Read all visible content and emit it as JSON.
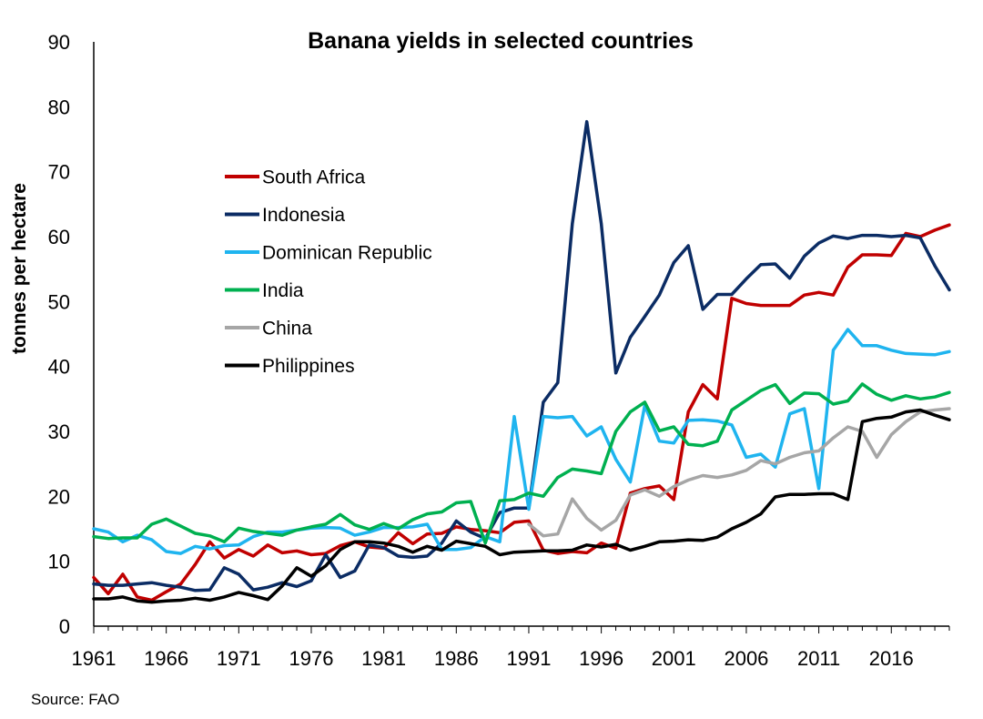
{
  "chart_data": {
    "type": "line",
    "title": "Banana yields in selected countries",
    "ylabel": "tonnes per hectare",
    "xlabel": "",
    "source": "Source: FAO",
    "ylim": [
      0,
      90
    ],
    "yticks": [
      0,
      10,
      20,
      30,
      40,
      50,
      60,
      70,
      80,
      90
    ],
    "xlim": [
      1961,
      2020
    ],
    "xticks": [
      1961,
      1966,
      1971,
      1976,
      1981,
      1986,
      1991,
      1996,
      2001,
      2006,
      2011,
      2016
    ],
    "grid": false,
    "legend_position": "upper-left",
    "series": [
      {
        "name": "South Africa",
        "color": "#C00000",
        "x": [
          1961,
          1962,
          1963,
          1964,
          1965,
          1966,
          1967,
          1968,
          1969,
          1970,
          1971,
          1972,
          1973,
          1974,
          1975,
          1976,
          1977,
          1978,
          1979,
          1980,
          1981,
          1982,
          1983,
          1984,
          1985,
          1986,
          1987,
          1988,
          1989,
          1990,
          1991,
          1992,
          1993,
          1994,
          1995,
          1996,
          1997,
          1998,
          1999,
          2000,
          2001,
          2002,
          2003,
          2004,
          2005,
          2006,
          2007,
          2008,
          2009,
          2010,
          2011,
          2012,
          2013,
          2014,
          2015,
          2016,
          2017,
          2018,
          2019,
          2020
        ],
        "values": [
          7.5,
          5.0,
          8.0,
          4.5,
          4.0,
          5.3,
          6.5,
          9.5,
          13.0,
          10.5,
          11.8,
          10.8,
          12.5,
          11.3,
          11.6,
          11.0,
          11.2,
          12.4,
          13.0,
          12.2,
          12.0,
          14.4,
          12.7,
          14.2,
          14.3,
          15.3,
          14.9,
          14.7,
          14.4,
          16.0,
          16.2,
          11.7,
          11.2,
          11.5,
          11.3,
          12.8,
          12.0,
          20.5,
          21.2,
          21.6,
          19.5,
          33.0,
          37.2,
          35.0,
          50.5,
          49.7,
          49.4,
          49.4,
          49.4,
          51.0,
          51.4,
          51.0,
          55.3,
          57.2,
          57.2,
          57.1,
          60.5,
          60.0,
          61.0,
          61.8
        ]
      },
      {
        "name": "Indonesia",
        "color": "#0B2C64",
        "x": [
          1961,
          1962,
          1963,
          1964,
          1965,
          1966,
          1967,
          1968,
          1969,
          1970,
          1971,
          1972,
          1973,
          1974,
          1975,
          1976,
          1977,
          1978,
          1979,
          1980,
          1981,
          1982,
          1983,
          1984,
          1985,
          1986,
          1987,
          1988,
          1989,
          1990,
          1991,
          1992,
          1993,
          1994,
          1995,
          1996,
          1997,
          1998,
          1999,
          2000,
          2001,
          2002,
          2003,
          2004,
          2005,
          2006,
          2007,
          2008,
          2009,
          2010,
          2011,
          2012,
          2013,
          2014,
          2015,
          2016,
          2017,
          2018,
          2019,
          2020
        ],
        "values": [
          6.5,
          6.3,
          6.3,
          6.5,
          6.7,
          6.3,
          6.0,
          5.5,
          5.6,
          9.0,
          8.0,
          5.6,
          6.0,
          6.7,
          6.1,
          7.0,
          11.0,
          7.5,
          8.5,
          12.5,
          12.1,
          10.8,
          10.6,
          10.8,
          12.8,
          16.2,
          14.5,
          13.5,
          17.5,
          18.2,
          18.2,
          34.5,
          37.5,
          62.0,
          77.7,
          62.0,
          39.0,
          44.5,
          47.7,
          51.0,
          56.0,
          58.6,
          48.8,
          51.1,
          51.1,
          53.5,
          55.7,
          55.8,
          53.6,
          57.0,
          59.0,
          60.1,
          59.7,
          60.2,
          60.2,
          60.0,
          60.2,
          59.8,
          55.5,
          51.8
        ]
      },
      {
        "name": "Dominican Republic",
        "color": "#1FB4EF",
        "x": [
          1961,
          1962,
          1963,
          1964,
          1965,
          1966,
          1967,
          1968,
          1969,
          1970,
          1971,
          1972,
          1973,
          1974,
          1975,
          1976,
          1977,
          1978,
          1979,
          1980,
          1981,
          1982,
          1983,
          1984,
          1985,
          1986,
          1987,
          1988,
          1989,
          1990,
          1991,
          1992,
          1993,
          1994,
          1995,
          1996,
          1997,
          1998,
          1999,
          2000,
          2001,
          2002,
          2003,
          2004,
          2005,
          2006,
          2007,
          2008,
          2009,
          2010,
          2011,
          2012,
          2013,
          2014,
          2015,
          2016,
          2017,
          2018,
          2019,
          2020
        ],
        "values": [
          15.0,
          14.5,
          13.0,
          14.0,
          13.3,
          11.5,
          11.2,
          12.3,
          11.9,
          12.4,
          12.5,
          13.8,
          14.5,
          14.5,
          14.8,
          15.1,
          15.2,
          15.1,
          14.0,
          14.5,
          15.2,
          15.2,
          15.3,
          15.7,
          11.8,
          11.8,
          12.1,
          13.8,
          13.0,
          32.3,
          18.0,
          32.3,
          32.1,
          32.3,
          29.3,
          30.7,
          25.7,
          22.2,
          34.0,
          28.5,
          28.2,
          31.7,
          31.8,
          31.6,
          31.0,
          26.0,
          26.5,
          24.5,
          32.7,
          33.5,
          21.2,
          42.5,
          45.7,
          43.2,
          43.2,
          42.5,
          42.0,
          41.9,
          41.8,
          42.3
        ]
      },
      {
        "name": "India",
        "color": "#00B050",
        "x": [
          1961,
          1962,
          1963,
          1964,
          1965,
          1966,
          1967,
          1968,
          1969,
          1970,
          1971,
          1972,
          1973,
          1974,
          1975,
          1976,
          1977,
          1978,
          1979,
          1980,
          1981,
          1982,
          1983,
          1984,
          1985,
          1986,
          1987,
          1988,
          1989,
          1990,
          1991,
          1992,
          1993,
          1994,
          1995,
          1996,
          1997,
          1998,
          1999,
          2000,
          2001,
          2002,
          2003,
          2004,
          2005,
          2006,
          2007,
          2008,
          2009,
          2010,
          2011,
          2012,
          2013,
          2014,
          2015,
          2016,
          2017,
          2018,
          2019,
          2020
        ],
        "values": [
          13.8,
          13.5,
          13.6,
          13.6,
          15.7,
          16.5,
          15.4,
          14.3,
          13.9,
          13.0,
          15.1,
          14.6,
          14.3,
          14.0,
          14.8,
          15.3,
          15.7,
          17.2,
          15.6,
          14.9,
          15.8,
          15.0,
          16.4,
          17.3,
          17.6,
          19.0,
          19.2,
          12.8,
          19.3,
          19.5,
          20.5,
          20.0,
          22.9,
          24.2,
          23.9,
          23.5,
          30.0,
          33.0,
          34.5,
          30.1,
          30.7,
          28.0,
          27.8,
          28.5,
          33.3,
          34.8,
          36.3,
          37.2,
          34.3,
          35.9,
          35.8,
          34.2,
          34.7,
          37.3,
          35.7,
          34.8,
          35.5,
          35.0,
          35.3,
          36.0
        ]
      },
      {
        "name": "China",
        "color": "#A6A6A6",
        "x": [
          1991,
          1992,
          1993,
          1994,
          1995,
          1996,
          1997,
          1998,
          1999,
          2000,
          2001,
          2002,
          2003,
          2004,
          2005,
          2006,
          2007,
          2008,
          2009,
          2010,
          2011,
          2012,
          2013,
          2014,
          2015,
          2016,
          2017,
          2018,
          2019,
          2020
        ],
        "values": [
          15.7,
          13.9,
          14.2,
          19.6,
          16.6,
          14.8,
          16.3,
          20.2,
          21.0,
          20.0,
          21.5,
          22.5,
          23.2,
          22.9,
          23.3,
          24.0,
          25.5,
          25.0,
          26.0,
          26.7,
          27.0,
          29.0,
          30.7,
          30.0,
          26.0,
          29.5,
          31.5,
          33.0,
          33.3,
          33.5
        ]
      },
      {
        "name": "Philippines",
        "color": "#000000",
        "x": [
          1961,
          1962,
          1963,
          1964,
          1965,
          1966,
          1967,
          1968,
          1969,
          1970,
          1971,
          1972,
          1973,
          1974,
          1975,
          1976,
          1977,
          1978,
          1979,
          1980,
          1981,
          1982,
          1983,
          1984,
          1985,
          1986,
          1987,
          1988,
          1989,
          1990,
          1991,
          1992,
          1993,
          1994,
          1995,
          1996,
          1997,
          1998,
          1999,
          2000,
          2001,
          2002,
          2003,
          2004,
          2005,
          2006,
          2007,
          2008,
          2009,
          2010,
          2011,
          2012,
          2013,
          2014,
          2015,
          2016,
          2017,
          2018,
          2019,
          2020
        ],
        "values": [
          4.2,
          4.2,
          4.5,
          3.9,
          3.7,
          3.9,
          4.0,
          4.3,
          4.0,
          4.5,
          5.2,
          4.7,
          4.1,
          6.2,
          9.0,
          7.7,
          9.3,
          11.8,
          13.0,
          13.0,
          12.8,
          12.3,
          11.4,
          12.3,
          11.7,
          13.1,
          12.7,
          12.3,
          11.0,
          11.4,
          11.5,
          11.6,
          11.6,
          11.7,
          12.5,
          12.2,
          12.6,
          11.7,
          12.3,
          13.0,
          13.1,
          13.3,
          13.2,
          13.7,
          15.0,
          16.0,
          17.3,
          19.9,
          20.3,
          20.3,
          20.4,
          20.4,
          19.5,
          31.5,
          32.0,
          32.2,
          33.0,
          33.3,
          32.5,
          31.8
        ]
      }
    ]
  }
}
